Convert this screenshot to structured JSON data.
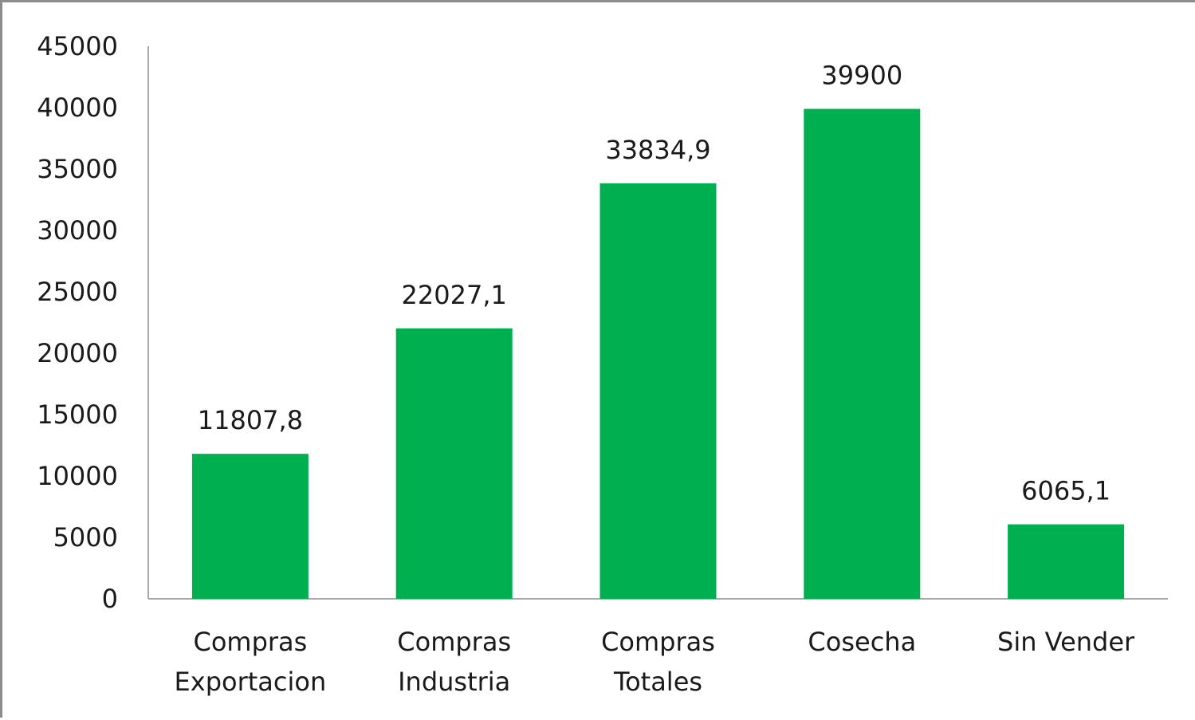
{
  "chart_data": {
    "type": "bar",
    "title": "",
    "xlabel": "",
    "ylabel": "",
    "categories": [
      [
        "Compras",
        "Exportacion"
      ],
      [
        "Compras",
        "Industria"
      ],
      [
        "Compras",
        "Totales"
      ],
      [
        "Cosecha"
      ],
      [
        "Sin Vender"
      ]
    ],
    "values": [
      11807.8,
      22027.1,
      33834.9,
      39900,
      6065.1
    ],
    "data_labels": [
      "11807,8",
      "22027,1",
      "33834,9",
      "39900",
      "6065,1"
    ],
    "yticks": [
      "0",
      "5000",
      "10000",
      "15000",
      "20000",
      "25000",
      "30000",
      "35000",
      "40000",
      "45000"
    ],
    "ylim": [
      0,
      45000
    ],
    "grid": false,
    "legend": "none",
    "bar_color": "#00b050",
    "axis_color": "#8c8c8c"
  }
}
